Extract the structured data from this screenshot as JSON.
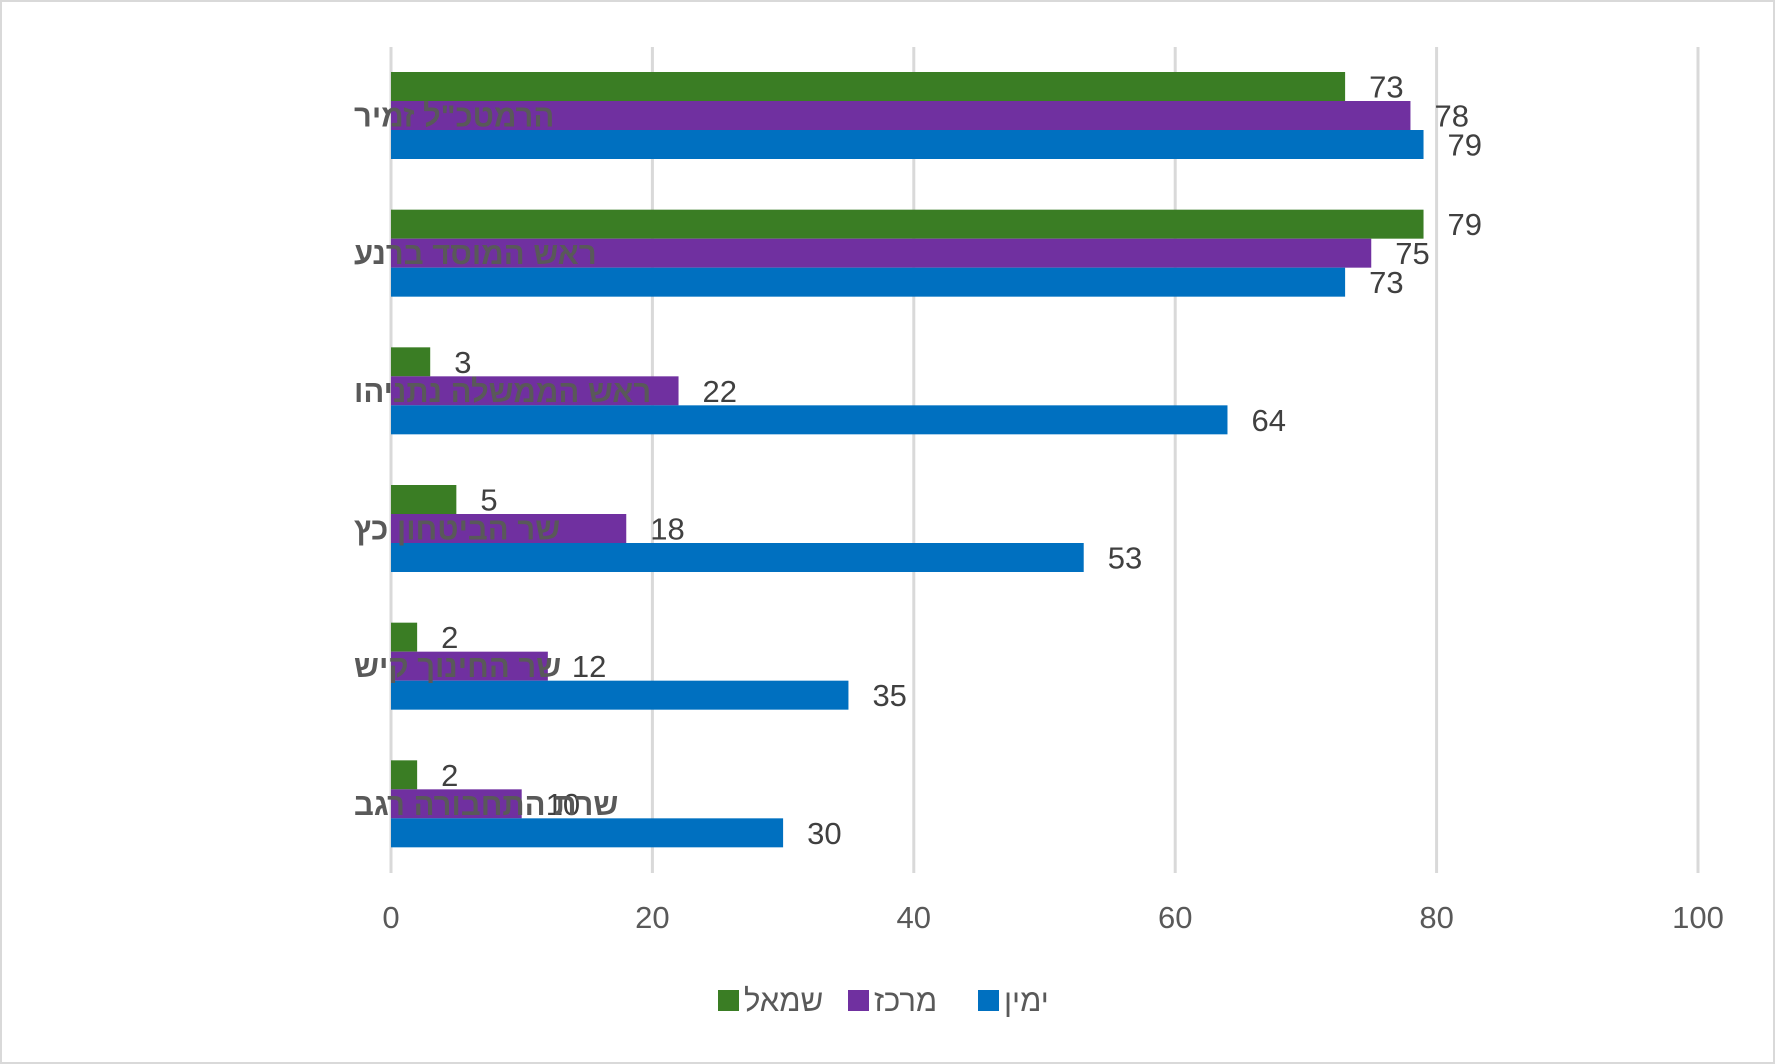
{
  "chart_data": {
    "type": "bar",
    "orientation": "horizontal",
    "categories": [
      "הרמטכ\"ל זמיר",
      "ראש המוסד ברנע",
      "ראש הממשלה נתניהו",
      "שר הביטחון כץ",
      "שר החינוך קיש",
      "שרת התחבורה רגב"
    ],
    "series": [
      {
        "name": "שמאל",
        "color": "#3a7d24",
        "values": [
          73,
          79,
          3,
          5,
          2,
          2
        ]
      },
      {
        "name": "מרכז",
        "color": "#7030a0",
        "values": [
          78,
          75,
          22,
          18,
          12,
          10
        ]
      },
      {
        "name": "ימין",
        "color": "#0070c0",
        "values": [
          79,
          73,
          64,
          53,
          35,
          30
        ]
      }
    ],
    "xlim": [
      0,
      100
    ],
    "xticks": [
      0,
      20,
      40,
      60,
      80,
      100
    ],
    "grid": true,
    "legend_position": "bottom",
    "title": "",
    "xlabel": "",
    "ylabel": ""
  }
}
